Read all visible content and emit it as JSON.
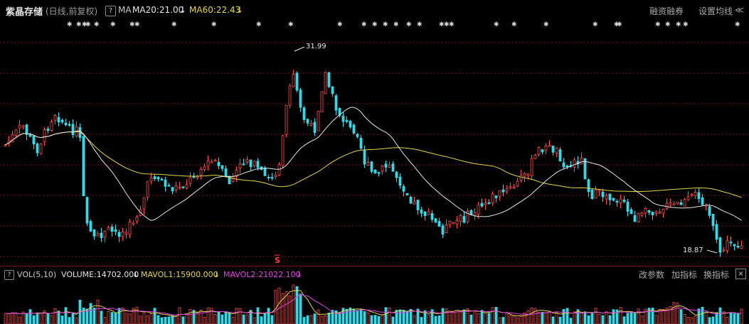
{
  "header": {
    "stock_name": "紫晶存储",
    "period": "(日线,前复权)",
    "help": "?",
    "indicator": "MA",
    "ma20": "MA20:21.00",
    "ma20_arrow": "↓",
    "ma60": "MA60:22.43",
    "ma60_arrow": "↓",
    "margin_label": "融资融券",
    "set_ma_label": "设置均线",
    "chevron": "≪"
  },
  "colors": {
    "up": "#ff4a4a",
    "down": "#33d9e6",
    "ma20": "#e6e6e6",
    "ma60": "#e3d54a",
    "mavol2": "#e040e0",
    "grid": "#7a1010"
  },
  "main_chart": {
    "annotations": {
      "high": "31.99",
      "low": "18.87",
      "s_marker": "S"
    }
  },
  "volume_panel": {
    "help": "?",
    "indicator": "VOL(5,10)",
    "volume": "VOLUME:14702.000",
    "volume_arrow": "↓",
    "mavol1": "MAVOL1:15900.000",
    "mavol1_arrow": "↓",
    "mavol2": "MAVOL2:21022.100",
    "mavol2_arrow": "↓",
    "param_label": "改参数",
    "add_label": "加指标",
    "switch_label": "换指标",
    "close": "×"
  }
}
